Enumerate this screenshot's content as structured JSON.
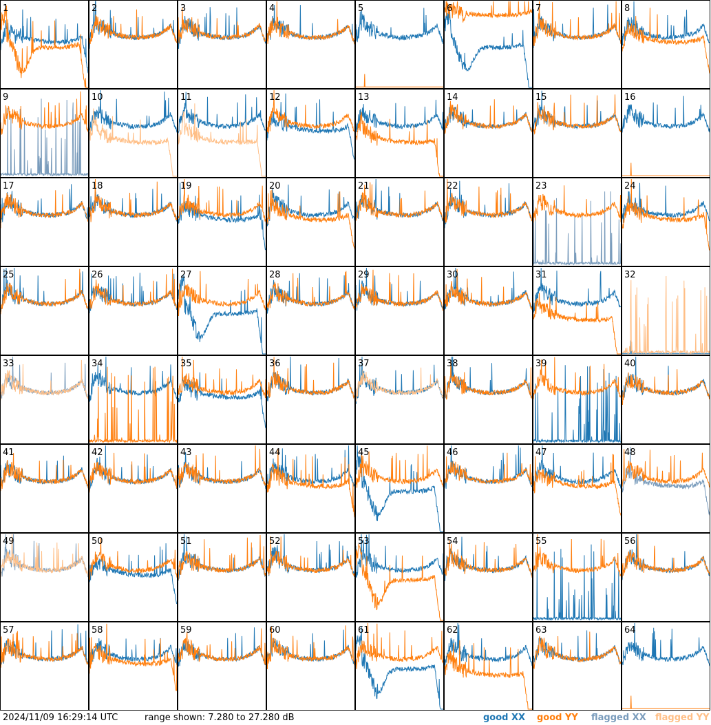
{
  "footer": {
    "timestamp": "2024/11/09 16:29:14 UTC",
    "range_text": "range shown: 7.280 to 27.280 dB"
  },
  "legend": {
    "good_xx": "good XX",
    "good_yy": "good YY",
    "flagged_xx": "flagged XX",
    "flagged_yy": "flagged YY"
  },
  "colors": {
    "good_xx": "#1f77b4",
    "good_yy": "#ff7f0e",
    "flagged_xx": "#7a9cbc",
    "flagged_yy": "#ffbf87",
    "frame": "#000000"
  },
  "chart_data": {
    "type": "line",
    "ylim": [
      7.28,
      27.28
    ],
    "yunit": "dB",
    "grid": "8x8 small multiples",
    "panels": [
      {
        "label": "1",
        "xx": "good",
        "yy": "good",
        "xx_shape": "mid",
        "yy_shape": "droop"
      },
      {
        "label": "2",
        "xx": "good",
        "yy": "good",
        "xx_shape": "normal",
        "yy_shape": "normal"
      },
      {
        "label": "3",
        "xx": "good",
        "yy": "good",
        "xx_shape": "normal",
        "yy_shape": "normal"
      },
      {
        "label": "4",
        "xx": "good",
        "yy": "good",
        "xx_shape": "normal",
        "yy_shape": "normal"
      },
      {
        "label": "5",
        "xx": "good",
        "yy": "good",
        "xx_shape": "normal",
        "yy_shape": "dead"
      },
      {
        "label": "6",
        "xx": "good",
        "yy": "good",
        "xx_shape": "droop",
        "yy_shape": "high"
      },
      {
        "label": "7",
        "xx": "good",
        "yy": "good",
        "xx_shape": "normal",
        "yy_shape": "normal"
      },
      {
        "label": "8",
        "xx": "good",
        "yy": "good",
        "xx_shape": "normal",
        "yy_shape": "mid"
      },
      {
        "label": "9",
        "xx": "flagged",
        "yy": "good",
        "xx_shape": "spiky",
        "yy_shape": "normal"
      },
      {
        "label": "10",
        "xx": "good",
        "yy": "flagged",
        "xx_shape": "normal",
        "yy_shape": "low"
      },
      {
        "label": "11",
        "xx": "good",
        "yy": "flagged",
        "xx_shape": "normal",
        "yy_shape": "low"
      },
      {
        "label": "12",
        "xx": "good",
        "yy": "good",
        "xx_shape": "mid",
        "yy_shape": "normal"
      },
      {
        "label": "13",
        "xx": "good",
        "yy": "good",
        "xx_shape": "normal",
        "yy_shape": "low"
      },
      {
        "label": "14",
        "xx": "good",
        "yy": "good",
        "xx_shape": "normal",
        "yy_shape": "normal"
      },
      {
        "label": "15",
        "xx": "good",
        "yy": "good",
        "xx_shape": "normal",
        "yy_shape": "normal"
      },
      {
        "label": "16",
        "xx": "good",
        "yy": "good",
        "xx_shape": "normal",
        "yy_shape": "dead"
      },
      {
        "label": "17",
        "xx": "good",
        "yy": "good",
        "xx_shape": "normal",
        "yy_shape": "normal"
      },
      {
        "label": "18",
        "xx": "good",
        "yy": "good",
        "xx_shape": "normal",
        "yy_shape": "normal"
      },
      {
        "label": "19",
        "xx": "good",
        "yy": "good",
        "xx_shape": "mid",
        "yy_shape": "normal"
      },
      {
        "label": "20",
        "xx": "good",
        "yy": "good",
        "xx_shape": "normal",
        "yy_shape": "mid"
      },
      {
        "label": "21",
        "xx": "good",
        "yy": "good",
        "xx_shape": "normal",
        "yy_shape": "normal"
      },
      {
        "label": "22",
        "xx": "good",
        "yy": "good",
        "xx_shape": "normal",
        "yy_shape": "normal"
      },
      {
        "label": "23",
        "xx": "flagged",
        "yy": "good",
        "xx_shape": "spiky",
        "yy_shape": "normal"
      },
      {
        "label": "24",
        "xx": "good",
        "yy": "good",
        "xx_shape": "normal",
        "yy_shape": "mid"
      },
      {
        "label": "25",
        "xx": "good",
        "yy": "good",
        "xx_shape": "normal",
        "yy_shape": "normal"
      },
      {
        "label": "26",
        "xx": "good",
        "yy": "good",
        "xx_shape": "normal",
        "yy_shape": "normal"
      },
      {
        "label": "27",
        "xx": "good",
        "yy": "good",
        "xx_shape": "droop",
        "yy_shape": "normal"
      },
      {
        "label": "28",
        "xx": "good",
        "yy": "good",
        "xx_shape": "normal",
        "yy_shape": "normal"
      },
      {
        "label": "29",
        "xx": "good",
        "yy": "good",
        "xx_shape": "normal",
        "yy_shape": "normal"
      },
      {
        "label": "30",
        "xx": "good",
        "yy": "good",
        "xx_shape": "normal",
        "yy_shape": "normal"
      },
      {
        "label": "31",
        "xx": "good",
        "yy": "good",
        "xx_shape": "normal",
        "yy_shape": "low"
      },
      {
        "label": "32",
        "xx": "good",
        "yy": "flagged",
        "xx_shape": "dead",
        "yy_shape": "spiky"
      },
      {
        "label": "33",
        "xx": "flagged",
        "yy": "flagged",
        "xx_shape": "normal",
        "yy_shape": "normal"
      },
      {
        "label": "34",
        "xx": "good",
        "yy": "good",
        "xx_shape": "normal",
        "yy_shape": "spiky"
      },
      {
        "label": "35",
        "xx": "good",
        "yy": "good",
        "xx_shape": "mid",
        "yy_shape": "normal"
      },
      {
        "label": "36",
        "xx": "good",
        "yy": "good",
        "xx_shape": "normal",
        "yy_shape": "normal"
      },
      {
        "label": "37",
        "xx": "good",
        "yy": "flagged",
        "xx_shape": "normal",
        "yy_shape": "normal"
      },
      {
        "label": "38",
        "xx": "good",
        "yy": "good",
        "xx_shape": "normal",
        "yy_shape": "normal"
      },
      {
        "label": "39",
        "xx": "good",
        "yy": "good",
        "xx_shape": "spiky",
        "yy_shape": "normal"
      },
      {
        "label": "40",
        "xx": "good",
        "yy": "good",
        "xx_shape": "normal",
        "yy_shape": "normal"
      },
      {
        "label": "41",
        "xx": "good",
        "yy": "good",
        "xx_shape": "normal",
        "yy_shape": "normal"
      },
      {
        "label": "42",
        "xx": "good",
        "yy": "good",
        "xx_shape": "normal",
        "yy_shape": "normal"
      },
      {
        "label": "43",
        "xx": "good",
        "yy": "good",
        "xx_shape": "normal",
        "yy_shape": "normal"
      },
      {
        "label": "44",
        "xx": "good",
        "yy": "good",
        "xx_shape": "normal",
        "yy_shape": "mid"
      },
      {
        "label": "45",
        "xx": "good",
        "yy": "good",
        "xx_shape": "droop",
        "yy_shape": "normal"
      },
      {
        "label": "46",
        "xx": "good",
        "yy": "good",
        "xx_shape": "normal",
        "yy_shape": "normal"
      },
      {
        "label": "47",
        "xx": "good",
        "yy": "good",
        "xx_shape": "normal",
        "yy_shape": "mid"
      },
      {
        "label": "48",
        "xx": "flagged",
        "yy": "good",
        "xx_shape": "mid",
        "yy_shape": "normal"
      },
      {
        "label": "49",
        "xx": "flagged",
        "yy": "flagged",
        "xx_shape": "normal",
        "yy_shape": "normal"
      },
      {
        "label": "50",
        "xx": "good",
        "yy": "good",
        "xx_shape": "mid",
        "yy_shape": "normal"
      },
      {
        "label": "51",
        "xx": "good",
        "yy": "good",
        "xx_shape": "normal",
        "yy_shape": "normal"
      },
      {
        "label": "52",
        "xx": "good",
        "yy": "good",
        "xx_shape": "normal",
        "yy_shape": "normal"
      },
      {
        "label": "53",
        "xx": "good",
        "yy": "good",
        "xx_shape": "normal",
        "yy_shape": "droop"
      },
      {
        "label": "54",
        "xx": "good",
        "yy": "good",
        "xx_shape": "normal",
        "yy_shape": "normal"
      },
      {
        "label": "55",
        "xx": "good",
        "yy": "good",
        "xx_shape": "spiky",
        "yy_shape": "normal"
      },
      {
        "label": "56",
        "xx": "good",
        "yy": "good",
        "xx_shape": "normal",
        "yy_shape": "normal"
      },
      {
        "label": "57",
        "xx": "good",
        "yy": "good",
        "xx_shape": "normal",
        "yy_shape": "normal"
      },
      {
        "label": "58",
        "xx": "good",
        "yy": "good",
        "xx_shape": "normal",
        "yy_shape": "mid"
      },
      {
        "label": "59",
        "xx": "good",
        "yy": "good",
        "xx_shape": "normal",
        "yy_shape": "normal"
      },
      {
        "label": "60",
        "xx": "good",
        "yy": "good",
        "xx_shape": "normal",
        "yy_shape": "normal"
      },
      {
        "label": "61",
        "xx": "good",
        "yy": "good",
        "xx_shape": "droop",
        "yy_shape": "normal"
      },
      {
        "label": "62",
        "xx": "good",
        "yy": "good",
        "xx_shape": "normal",
        "yy_shape": "low"
      },
      {
        "label": "63",
        "xx": "good",
        "yy": "good",
        "xx_shape": "normal",
        "yy_shape": "normal"
      },
      {
        "label": "64",
        "xx": "good",
        "yy": "good",
        "xx_shape": "normal",
        "yy_shape": "dead"
      }
    ]
  }
}
